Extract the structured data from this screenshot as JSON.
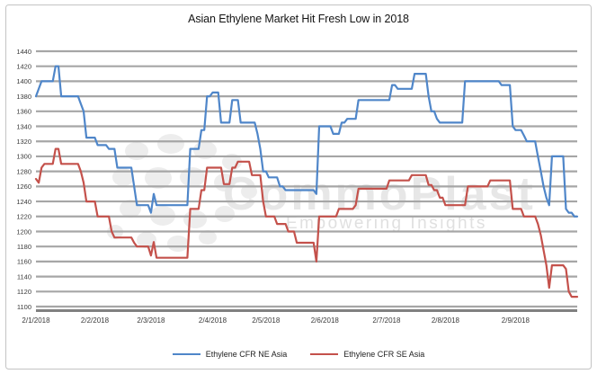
{
  "watermark": {
    "brand": "CommoPlast",
    "tagline": "Empowering Insights"
  },
  "chart_data": {
    "type": "line",
    "title": "Asian Ethylene Market Hit Fresh Low in 2018",
    "xlabel": "",
    "ylabel": "",
    "grid": true,
    "legend_position": "bottom",
    "y_axis": {
      "min": 1100,
      "max": 1440,
      "step": 20
    },
    "x_axis": {
      "labels": [
        "2/1/2018",
        "2/2/2018",
        "2/3/2018",
        "2/4/2018",
        "2/5/2018",
        "2/6/2018",
        "2/7/2018",
        "2/8/2018",
        "2/9/2018"
      ],
      "label_day_indices": [
        0,
        21,
        41,
        63,
        82,
        103,
        125,
        146,
        171
      ],
      "total_points": 194
    },
    "colors": {
      "axis": "#808080",
      "gridline": "#a6a6a6",
      "tick_text": "#3a3a3a"
    },
    "series": [
      {
        "name": "Ethylene CFR NE Asia",
        "color": "#4f86c9",
        "values": [
          1380,
          1390,
          1400,
          1400,
          1400,
          1400,
          1400,
          1420,
          1420,
          1380,
          1380,
          1380,
          1380,
          1380,
          1380,
          1380,
          1370,
          1360,
          1325,
          1325,
          1325,
          1325,
          1315,
          1315,
          1315,
          1315,
          1310,
          1310,
          1310,
          1285,
          1285,
          1285,
          1285,
          1285,
          1285,
          1260,
          1235,
          1235,
          1235,
          1235,
          1235,
          1225,
          1250,
          1235,
          1235,
          1235,
          1235,
          1235,
          1235,
          1235,
          1235,
          1235,
          1235,
          1235,
          1235,
          1310,
          1310,
          1310,
          1310,
          1335,
          1335,
          1380,
          1380,
          1385,
          1385,
          1385,
          1345,
          1345,
          1345,
          1345,
          1375,
          1375,
          1375,
          1345,
          1345,
          1345,
          1345,
          1345,
          1345,
          1330,
          1310,
          1280,
          1280,
          1272,
          1272,
          1272,
          1272,
          1260,
          1260,
          1255,
          1255,
          1255,
          1255,
          1255,
          1255,
          1255,
          1255,
          1255,
          1255,
          1255,
          1250,
          1340,
          1340,
          1340,
          1340,
          1340,
          1330,
          1330,
          1330,
          1345,
          1345,
          1350,
          1350,
          1350,
          1350,
          1375,
          1375,
          1375,
          1375,
          1375,
          1375,
          1375,
          1375,
          1375,
          1375,
          1375,
          1375,
          1395,
          1395,
          1390,
          1390,
          1390,
          1390,
          1390,
          1390,
          1410,
          1410,
          1410,
          1410,
          1410,
          1380,
          1360,
          1360,
          1350,
          1345,
          1345,
          1345,
          1345,
          1345,
          1345,
          1345,
          1345,
          1345,
          1400,
          1400,
          1400,
          1400,
          1400,
          1400,
          1400,
          1400,
          1400,
          1400,
          1400,
          1400,
          1400,
          1395,
          1395,
          1395,
          1395,
          1340,
          1335,
          1335,
          1335,
          1328,
          1320,
          1320,
          1320,
          1320,
          1300,
          1280,
          1260,
          1245,
          1235,
          1300,
          1300,
          1300,
          1300,
          1300,
          1230,
          1225,
          1225,
          1220,
          1220
        ]
      },
      {
        "name": "Ethylene CFR SE Asia",
        "color": "#c4514b",
        "values": [
          1270,
          1265,
          1285,
          1290,
          1290,
          1290,
          1290,
          1310,
          1310,
          1290,
          1290,
          1290,
          1290,
          1290,
          1290,
          1290,
          1280,
          1265,
          1240,
          1240,
          1240,
          1240,
          1220,
          1220,
          1220,
          1220,
          1220,
          1200,
          1192,
          1192,
          1192,
          1192,
          1192,
          1192,
          1192,
          1185,
          1180,
          1180,
          1180,
          1180,
          1180,
          1168,
          1186,
          1165,
          1165,
          1165,
          1165,
          1165,
          1165,
          1165,
          1165,
          1165,
          1165,
          1165,
          1165,
          1230,
          1230,
          1230,
          1230,
          1255,
          1255,
          1285,
          1285,
          1285,
          1285,
          1285,
          1285,
          1263,
          1263,
          1263,
          1285,
          1285,
          1293,
          1293,
          1293,
          1293,
          1293,
          1275,
          1275,
          1275,
          1275,
          1240,
          1220,
          1220,
          1220,
          1220,
          1210,
          1210,
          1210,
          1210,
          1200,
          1200,
          1200,
          1185,
          1185,
          1185,
          1185,
          1185,
          1185,
          1185,
          1160,
          1220,
          1220,
          1220,
          1220,
          1220,
          1220,
          1220,
          1230,
          1230,
          1230,
          1230,
          1230,
          1230,
          1235,
          1257,
          1257,
          1257,
          1257,
          1257,
          1257,
          1257,
          1257,
          1257,
          1257,
          1257,
          1268,
          1268,
          1268,
          1268,
          1268,
          1268,
          1268,
          1268,
          1275,
          1275,
          1275,
          1275,
          1275,
          1275,
          1262,
          1262,
          1255,
          1255,
          1245,
          1245,
          1235,
          1235,
          1235,
          1235,
          1235,
          1235,
          1235,
          1235,
          1260,
          1260,
          1260,
          1260,
          1260,
          1260,
          1260,
          1260,
          1268,
          1268,
          1268,
          1268,
          1268,
          1268,
          1268,
          1268,
          1230,
          1230,
          1230,
          1230,
          1220,
          1220,
          1220,
          1220,
          1220,
          1210,
          1195,
          1175,
          1155,
          1125,
          1155,
          1155,
          1155,
          1155,
          1155,
          1150,
          1120,
          1113,
          1113,
          1113
        ]
      }
    ]
  }
}
